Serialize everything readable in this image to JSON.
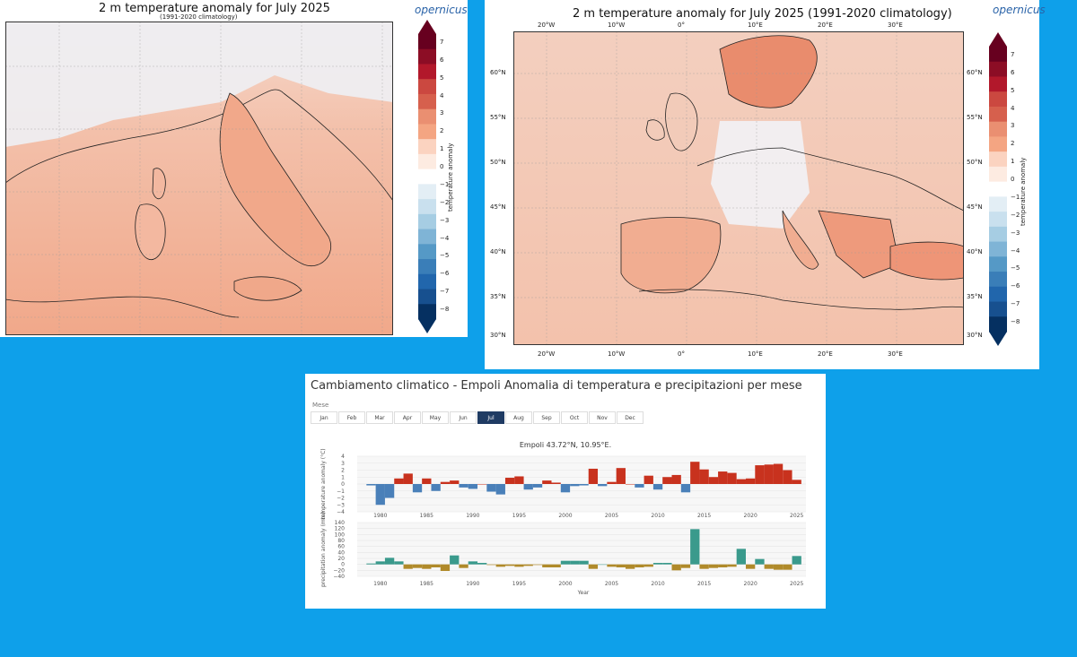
{
  "map_left": {
    "title": "2 m temperature anomaly for July 2025",
    "subtitle": "(1991-2020 climatology)",
    "logo": "opernicus",
    "colorbar_title": "temperature anomaly",
    "colorbar_ticks": [
      "7",
      "6",
      "5",
      "4",
      "3",
      "2",
      "1",
      "0",
      "−1",
      "−2",
      "−3",
      "−4",
      "−5",
      "−6",
      "−7",
      "−8"
    ]
  },
  "map_right": {
    "title": "2 m temperature anomaly for July 2025 (1991-2020 climatology)",
    "logo": "opernicus",
    "colorbar_title": "temperature anomaly",
    "colorbar_ticks": [
      "7",
      "6",
      "5",
      "4",
      "3",
      "2",
      "1",
      "0",
      "−1",
      "−2",
      "−3",
      "−4",
      "−5",
      "−6",
      "−7",
      "−8"
    ],
    "lon_labels": [
      "20°W",
      "10°W",
      "0°",
      "10°E",
      "20°E",
      "30°E"
    ],
    "lat_left": [
      "60°N",
      "55°N",
      "50°N",
      "45°N",
      "40°N",
      "35°N",
      "30°N"
    ],
    "lat_right": [
      "60°N",
      "55°N",
      "50°N",
      "45°N",
      "40°N",
      "35°N",
      "30°N"
    ]
  },
  "climate": {
    "title": "Cambiamento climatico - Empoli Anomalia di temperatura e precipitazioni per mese",
    "month_label": "Mese",
    "months": [
      "Jan",
      "Feb",
      "Mar",
      "Apr",
      "May",
      "Jun",
      "Jul",
      "Aug",
      "Sep",
      "Oct",
      "Nov",
      "Dec"
    ],
    "selected_month": "Jul",
    "chart_title": "Empoli 43.72°N, 10.95°E.",
    "temp_ylabel": "temperature anomaly (°C)",
    "precip_ylabel": "precipitation anomaly (mm)",
    "xlabel": "Year",
    "year_ticks": [
      "1980",
      "1985",
      "1990",
      "1995",
      "2000",
      "2005",
      "2010",
      "2015",
      "2020",
      "2025"
    ],
    "temp_ticks": [
      "4",
      "3",
      "2",
      "1",
      "0",
      "−1",
      "−2",
      "−3",
      "−4"
    ],
    "precip_ticks": [
      "140",
      "120",
      "100",
      "80",
      "60",
      "40",
      "20",
      "0",
      "−20",
      "−40"
    ]
  },
  "chart_data": [
    {
      "type": "bar",
      "title": "Empoli 43.72°N, 10.95°E.",
      "ylabel": "temperature anomaly (°C)",
      "xlabel": "",
      "ylim": [
        -4,
        4
      ],
      "x": [
        1979,
        1980,
        1981,
        1982,
        1983,
        1984,
        1985,
        1986,
        1987,
        1988,
        1989,
        1990,
        1991,
        1992,
        1993,
        1994,
        1995,
        1996,
        1997,
        1998,
        1999,
        2000,
        2001,
        2002,
        2003,
        2004,
        2005,
        2006,
        2007,
        2008,
        2009,
        2010,
        2011,
        2012,
        2013,
        2014,
        2015,
        2016,
        2017,
        2018,
        2019,
        2020,
        2021,
        2022,
        2023,
        2024,
        2025
      ],
      "values": [
        -0.2,
        -3.0,
        -2.0,
        0.8,
        1.5,
        -1.2,
        0.8,
        -1.0,
        0.3,
        0.5,
        -0.5,
        -0.7,
        0.0,
        -1.1,
        -1.5,
        0.9,
        1.1,
        -0.8,
        -0.5,
        0.5,
        0.2,
        -1.2,
        -0.3,
        -0.2,
        2.2,
        -0.3,
        0.3,
        2.3,
        0.0,
        -0.5,
        1.2,
        -0.8,
        1.0,
        1.3,
        -1.2,
        3.2,
        2.1,
        1.0,
        1.8,
        1.6,
        0.7,
        0.8,
        2.7,
        2.8,
        2.9,
        2.0,
        0.6
      ],
      "colors": {
        "positive": "#c8321e",
        "negative": "#4a80b9"
      }
    },
    {
      "type": "bar",
      "title": "",
      "ylabel": "precipitation anomaly (mm)",
      "xlabel": "Year",
      "ylim": [
        -40,
        140
      ],
      "x": [
        1979,
        1980,
        1981,
        1982,
        1983,
        1984,
        1985,
        1986,
        1987,
        1988,
        1989,
        1990,
        1991,
        1992,
        1993,
        1994,
        1995,
        1996,
        1997,
        1998,
        1999,
        2000,
        2001,
        2002,
        2003,
        2004,
        2005,
        2006,
        2007,
        2008,
        2009,
        2010,
        2011,
        2012,
        2013,
        2014,
        2015,
        2016,
        2017,
        2018,
        2019,
        2020,
        2021,
        2022,
        2023,
        2024,
        2025
      ],
      "values": [
        3,
        10,
        22,
        10,
        -15,
        -12,
        -15,
        -10,
        -22,
        30,
        -12,
        10,
        5,
        -2,
        -8,
        -5,
        -8,
        -5,
        -2,
        -10,
        -10,
        12,
        12,
        12,
        -15,
        0,
        -8,
        -10,
        -15,
        -10,
        -8,
        5,
        5,
        -20,
        -12,
        118,
        -15,
        -12,
        -10,
        -8,
        52,
        -15,
        18,
        -15,
        -18,
        -18,
        28
      ],
      "colors": {
        "positive": "#3a9a8c",
        "negative": "#b08a2a"
      }
    }
  ]
}
